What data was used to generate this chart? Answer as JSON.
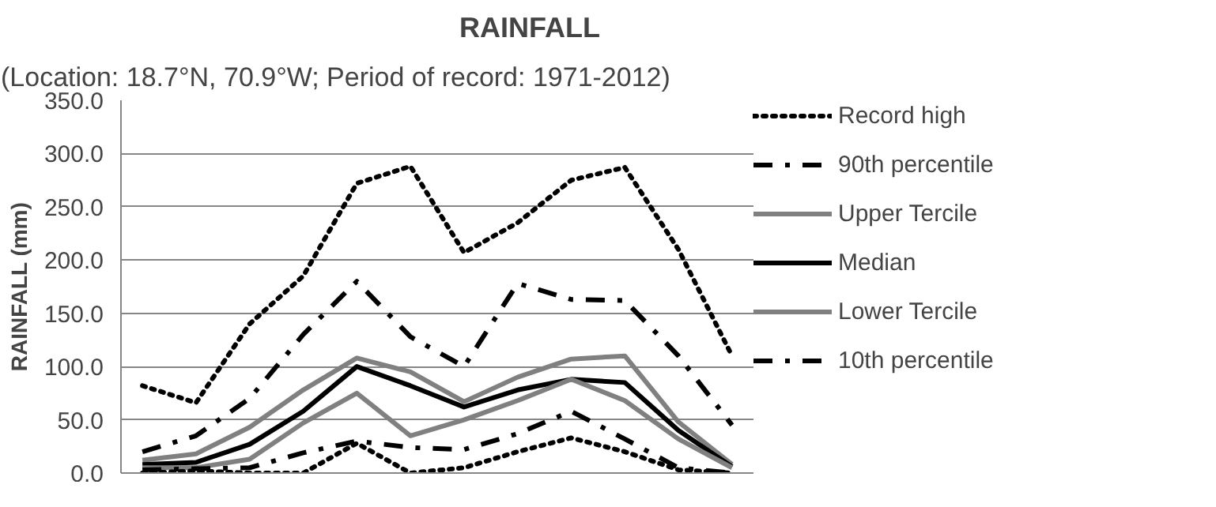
{
  "chart_data": {
    "type": "line",
    "title": "RAINFALL",
    "subtitle": "(Location: 18.7°N, 70.9°W; Period of record: 1971-2012)",
    "ylabel": "RAINFALL (mm)",
    "categories": [
      null,
      null,
      null,
      null,
      null,
      null,
      null,
      null,
      null,
      null,
      null,
      null
    ],
    "ylim": [
      0,
      350
    ],
    "yticks": [
      {
        "value": 0,
        "label": "0.0"
      },
      {
        "value": 50,
        "label": "50.0"
      },
      {
        "value": 100,
        "label": "100.0"
      },
      {
        "value": 150,
        "label": "150.0"
      },
      {
        "value": 200,
        "label": "200.0"
      },
      {
        "value": 250,
        "label": "250.0"
      },
      {
        "value": 300,
        "label": "300.0"
      },
      {
        "value": 350,
        "label": "350.0"
      }
    ],
    "grid": "y",
    "legend": "right",
    "tick_labels": "y",
    "series": [
      {
        "name": "Record high",
        "color": "#000000",
        "line_style": "dotted",
        "values": [
          82,
          66,
          140,
          185,
          272,
          288,
          207,
          235,
          275,
          287,
          210,
          110
        ]
      },
      {
        "name": "90th percentile",
        "color": "#000000",
        "line_style": "dashdot",
        "values": [
          20,
          35,
          70,
          130,
          180,
          128,
          100,
          178,
          163,
          162,
          110,
          45
        ]
      },
      {
        "name": "Upper Tercile",
        "color": "#808080",
        "line_style": "solid",
        "values": [
          12,
          18,
          43,
          78,
          108,
          95,
          67,
          90,
          107,
          110,
          48,
          8
        ]
      },
      {
        "name": "Median",
        "color": "#000000",
        "line_style": "solid",
        "values": [
          8,
          10,
          27,
          58,
          100,
          82,
          62,
          78,
          88,
          85,
          40,
          6
        ]
      },
      {
        "name": "Lower Tercile",
        "color": "#808080",
        "line_style": "solid",
        "values": [
          5,
          5,
          13,
          47,
          75,
          35,
          50,
          68,
          88,
          68,
          32,
          5
        ]
      },
      {
        "name": "10th percentile",
        "color": "#000000",
        "line_style": "dashdot",
        "values": [
          3,
          4,
          5,
          19,
          30,
          24,
          22,
          37,
          58,
          32,
          5,
          0
        ]
      },
      {
        "color": "#000000",
        "line_style": "dotted",
        "values": [
          0,
          2,
          0,
          0,
          28,
          0,
          5,
          20,
          33,
          20,
          3,
          0
        ]
      }
    ]
  }
}
